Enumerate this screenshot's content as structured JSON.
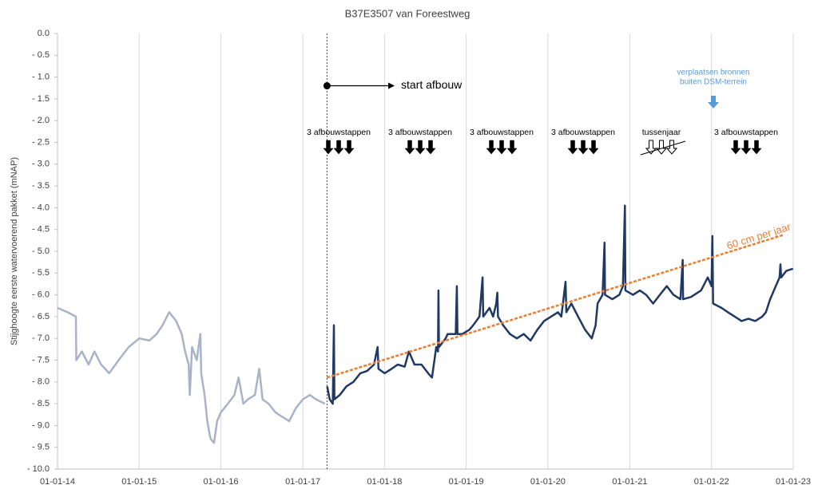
{
  "chart_data": {
    "type": "line",
    "title": "B37E3507 van Foreestweg",
    "y_label": "Stijghoogte eerste watervoerend pakket (mNAP)",
    "xlim": [
      "2014-01-01",
      "2023-01-01"
    ],
    "xticks": [
      {
        "value": "2014-01-01",
        "label": "01-01-14"
      },
      {
        "value": "2015-01-01",
        "label": "01-01-15"
      },
      {
        "value": "2016-01-01",
        "label": "01-01-16"
      },
      {
        "value": "2017-01-01",
        "label": "01-01-17"
      },
      {
        "value": "2018-01-01",
        "label": "01-01-18"
      },
      {
        "value": "2019-01-01",
        "label": "01-01-19"
      },
      {
        "value": "2020-01-01",
        "label": "01-01-20"
      },
      {
        "value": "2021-01-01",
        "label": "01-01-21"
      },
      {
        "value": "2022-01-01",
        "label": "01-01-22"
      },
      {
        "value": "2023-01-01",
        "label": "01-01-23"
      }
    ],
    "ylim": [
      -10,
      0
    ],
    "yticks": [
      {
        "value": 0,
        "label": "0.0"
      },
      {
        "value": -0.5,
        "label": "- 0.5"
      },
      {
        "value": -1,
        "label": "- 1.0"
      },
      {
        "value": -1.5,
        "label": "- 1.5"
      },
      {
        "value": -2,
        "label": "- 2.0"
      },
      {
        "value": -2.5,
        "label": "- 2.5"
      },
      {
        "value": -3,
        "label": "- 3.0"
      },
      {
        "value": -3.5,
        "label": "- 3.5"
      },
      {
        "value": -4,
        "label": "- 4.0"
      },
      {
        "value": -4.5,
        "label": "- 4.5"
      },
      {
        "value": -5,
        "label": "- 5.0"
      },
      {
        "value": -5.5,
        "label": "- 5.5"
      },
      {
        "value": -6,
        "label": "- 6.0"
      },
      {
        "value": -6.5,
        "label": "- 6.5"
      },
      {
        "value": -7,
        "label": "- 7.0"
      },
      {
        "value": -7.5,
        "label": "- 7.5"
      },
      {
        "value": -8,
        "label": "- 8.0"
      },
      {
        "value": -8.5,
        "label": "- 8.5"
      },
      {
        "value": -9,
        "label": "- 9.0"
      },
      {
        "value": -9.5,
        "label": "- 9.5"
      },
      {
        "value": -10,
        "label": "- 10.0"
      }
    ],
    "grid": "x",
    "series": [
      {
        "color": "#a9b3c8",
        "x": [
          "2014-01-01",
          "2014-02-15",
          "2014-03-24",
          "2014-03-26",
          "2014-04-20",
          "2014-05-20",
          "2014-06-15",
          "2014-07-15",
          "2014-08-20",
          "2014-10-01",
          "2014-11-15",
          "2015-01-01",
          "2015-02-15",
          "2015-03-20",
          "2015-04-15",
          "2015-05-15",
          "2015-06-15",
          "2015-07-10",
          "2015-07-25",
          "2015-08-10",
          "2015-08-15",
          "2015-08-25",
          "2015-09-15",
          "2015-10-01",
          "2015-10-05",
          "2015-10-20",
          "2015-11-01",
          "2015-11-15",
          "2015-12-01",
          "2015-12-15",
          "2016-01-01",
          "2016-02-01",
          "2016-03-01",
          "2016-03-20",
          "2016-04-10",
          "2016-05-01",
          "2016-06-01",
          "2016-06-20",
          "2016-07-05",
          "2016-08-01",
          "2016-09-01",
          "2016-10-01",
          "2016-11-01",
          "2016-12-01",
          "2017-01-01",
          "2017-02-01",
          "2017-03-01",
          "2017-04-10"
        ],
        "values": [
          -6.3,
          -6.4,
          -6.5,
          -7.5,
          -7.3,
          -7.6,
          -7.3,
          -7.6,
          -7.8,
          -7.5,
          -7.2,
          -7.0,
          -7.05,
          -6.9,
          -6.7,
          -6.4,
          -6.6,
          -6.9,
          -7.3,
          -7.6,
          -8.3,
          -7.2,
          -7.5,
          -6.9,
          -7.8,
          -8.3,
          -8.9,
          -9.3,
          -9.4,
          -8.9,
          -8.7,
          -8.5,
          -8.3,
          -7.9,
          -8.5,
          -8.4,
          -8.3,
          -7.7,
          -8.4,
          -8.5,
          -8.7,
          -8.8,
          -8.9,
          -8.6,
          -8.4,
          -8.3,
          -8.4,
          -8.5
        ]
      },
      {
        "color": "#1f3864",
        "x": [
          "2017-04-20",
          "2017-05-01",
          "2017-05-15",
          "2017-05-20",
          "2017-05-22",
          "2017-06-15",
          "2017-07-15",
          "2017-08-15",
          "2017-09-15",
          "2017-10-15",
          "2017-11-15",
          "2017-12-01",
          "2017-12-05",
          "2018-01-01",
          "2018-02-01",
          "2018-03-01",
          "2018-04-01",
          "2018-04-20",
          "2018-05-15",
          "2018-06-15",
          "2018-07-15",
          "2018-08-01",
          "2018-08-20",
          "2018-08-28",
          "2018-08-30",
          "2018-09-01",
          "2018-10-01",
          "2018-10-10",
          "2018-11-15",
          "2018-11-20",
          "2018-11-23",
          "2018-12-15",
          "2019-01-15",
          "2019-02-01",
          "2019-03-01",
          "2019-03-15",
          "2019-03-18",
          "2019-04-15",
          "2019-05-01",
          "2019-05-15",
          "2019-05-20",
          "2019-05-23",
          "2019-06-15",
          "2019-07-15",
          "2019-08-15",
          "2019-09-15",
          "2019-10-15",
          "2019-11-15",
          "2019-12-15",
          "2020-01-15",
          "2020-02-15",
          "2020-03-01",
          "2020-03-20",
          "2020-03-23",
          "2020-04-15",
          "2020-05-15",
          "2020-06-15",
          "2020-07-15",
          "2020-08-01",
          "2020-08-10",
          "2020-09-01",
          "2020-09-10",
          "2020-09-12",
          "2020-10-15",
          "2020-11-15",
          "2020-12-01",
          "2020-12-10",
          "2020-12-12",
          "2021-01-15",
          "2021-02-15",
          "2021-03-15",
          "2021-04-15",
          "2021-05-15",
          "2021-06-15",
          "2021-07-15",
          "2021-08-15",
          "2021-08-25",
          "2021-08-27",
          "2021-10-01",
          "2021-11-15",
          "2021-12-15",
          "2022-01-01",
          "2022-01-05",
          "2022-01-08",
          "2022-02-15",
          "2022-03-15",
          "2022-04-15",
          "2022-05-15",
          "2022-06-15",
          "2022-07-15",
          "2022-08-15",
          "2022-09-01",
          "2022-09-20",
          "2022-10-15",
          "2022-11-01",
          "2022-11-05",
          "2022-11-08",
          "2022-12-01",
          "2022-12-31"
        ],
        "values": [
          -8.1,
          -8.4,
          -8.5,
          -6.7,
          -8.4,
          -8.3,
          -8.1,
          -8.0,
          -7.8,
          -7.75,
          -7.6,
          -7.2,
          -7.7,
          -7.8,
          -7.7,
          -7.6,
          -7.65,
          -7.3,
          -7.6,
          -7.6,
          -7.8,
          -7.9,
          -7.2,
          -7.3,
          -5.9,
          -7.2,
          -7.0,
          -6.9,
          -6.9,
          -5.8,
          -6.9,
          -6.9,
          -6.8,
          -6.7,
          -6.5,
          -5.6,
          -6.5,
          -6.3,
          -6.5,
          -6.2,
          -5.95,
          -6.5,
          -6.7,
          -6.9,
          -7.0,
          -6.9,
          -7.05,
          -6.8,
          -6.6,
          -6.5,
          -6.4,
          -6.5,
          -5.7,
          -6.4,
          -6.2,
          -6.5,
          -6.8,
          -7.0,
          -6.7,
          -6.2,
          -6.0,
          -4.8,
          -6.0,
          -6.1,
          -6.0,
          -5.8,
          -3.95,
          -5.9,
          -6.0,
          -5.9,
          -6.0,
          -6.2,
          -6.0,
          -5.8,
          -6.0,
          -6.1,
          -5.2,
          -6.1,
          -6.05,
          -5.9,
          -5.6,
          -5.8,
          -4.65,
          -6.2,
          -6.3,
          -6.4,
          -6.5,
          -6.6,
          -6.55,
          -6.6,
          -6.5,
          -6.4,
          -6.1,
          -5.8,
          -5.6,
          -5.3,
          -5.6,
          -5.45,
          -5.4
        ]
      }
    ],
    "trend": {
      "label": "60 cm per jaar",
      "color": "#ed7d31",
      "x": [
        "2017-04-19",
        "2022-11-15"
      ],
      "values": [
        -7.9,
        -4.63
      ]
    },
    "start_afbouw": {
      "label": "start afbouw",
      "x": "2017-04-19",
      "value": -1.2
    },
    "steps": [
      "3 afbouwstappen",
      "3 afbouwstappen",
      "3 afbouwstappen",
      "3 afbouwstappen",
      "tussenjaar",
      "3 afbouwstappen"
    ],
    "relocation_note": [
      "verplaatsen bronnen",
      "buiten DSM-terrein"
    ]
  }
}
